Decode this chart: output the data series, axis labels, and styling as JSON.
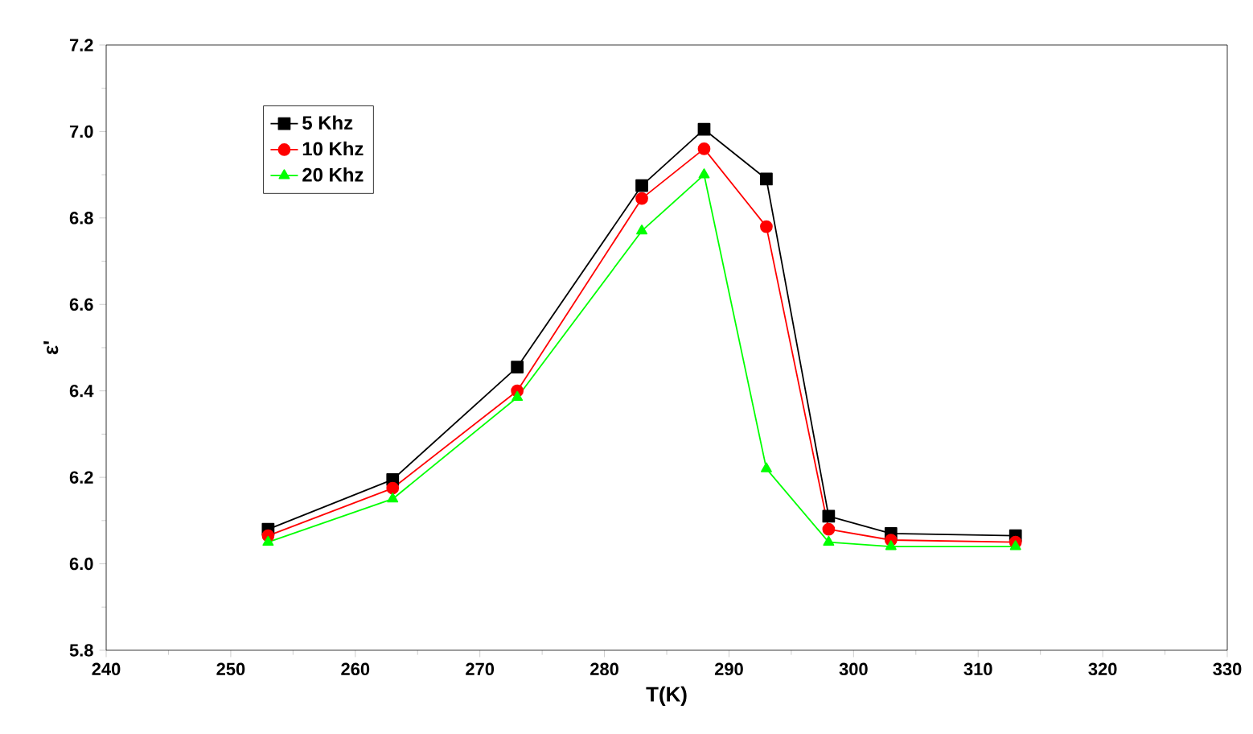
{
  "chart_data": {
    "type": "line",
    "xlabel": "T(K)",
    "ylabel": "ε'",
    "x": [
      253,
      263,
      273,
      283,
      288,
      293,
      298,
      303,
      313
    ],
    "series": [
      {
        "name": "5 Khz",
        "color": "#000000",
        "marker": "square",
        "values": [
          6.08,
          6.195,
          6.455,
          6.875,
          7.005,
          6.89,
          6.11,
          6.07,
          6.065
        ]
      },
      {
        "name": "10 Khz",
        "color": "#ff0000",
        "marker": "circle",
        "values": [
          6.065,
          6.175,
          6.4,
          6.845,
          6.96,
          6.78,
          6.08,
          6.055,
          6.05
        ]
      },
      {
        "name": "20 Khz",
        "color": "#00ff00",
        "marker": "triangle",
        "values": [
          6.05,
          6.15,
          6.385,
          6.77,
          6.9,
          6.22,
          6.05,
          6.04,
          6.04
        ]
      }
    ],
    "xlim": [
      240,
      330
    ],
    "xticks": [
      240,
      250,
      260,
      270,
      280,
      290,
      300,
      310,
      320,
      330
    ],
    "ylim": [
      5.8,
      7.2
    ],
    "yticks": [
      {
        "value": 5.8,
        "label": "5.8"
      },
      {
        "value": 6.0,
        "label": "6.0"
      },
      {
        "value": 6.2,
        "label": "6.2"
      },
      {
        "value": 6.4,
        "label": "6.4"
      },
      {
        "value": 6.6,
        "label": "6.6"
      },
      {
        "value": 6.8,
        "label": "6.8"
      },
      {
        "value": 7.0,
        "label": "7.0"
      },
      {
        "value": 7.2,
        "label": "7.2"
      }
    ],
    "legend": "top left",
    "grid": false,
    "line_style": "solid"
  }
}
